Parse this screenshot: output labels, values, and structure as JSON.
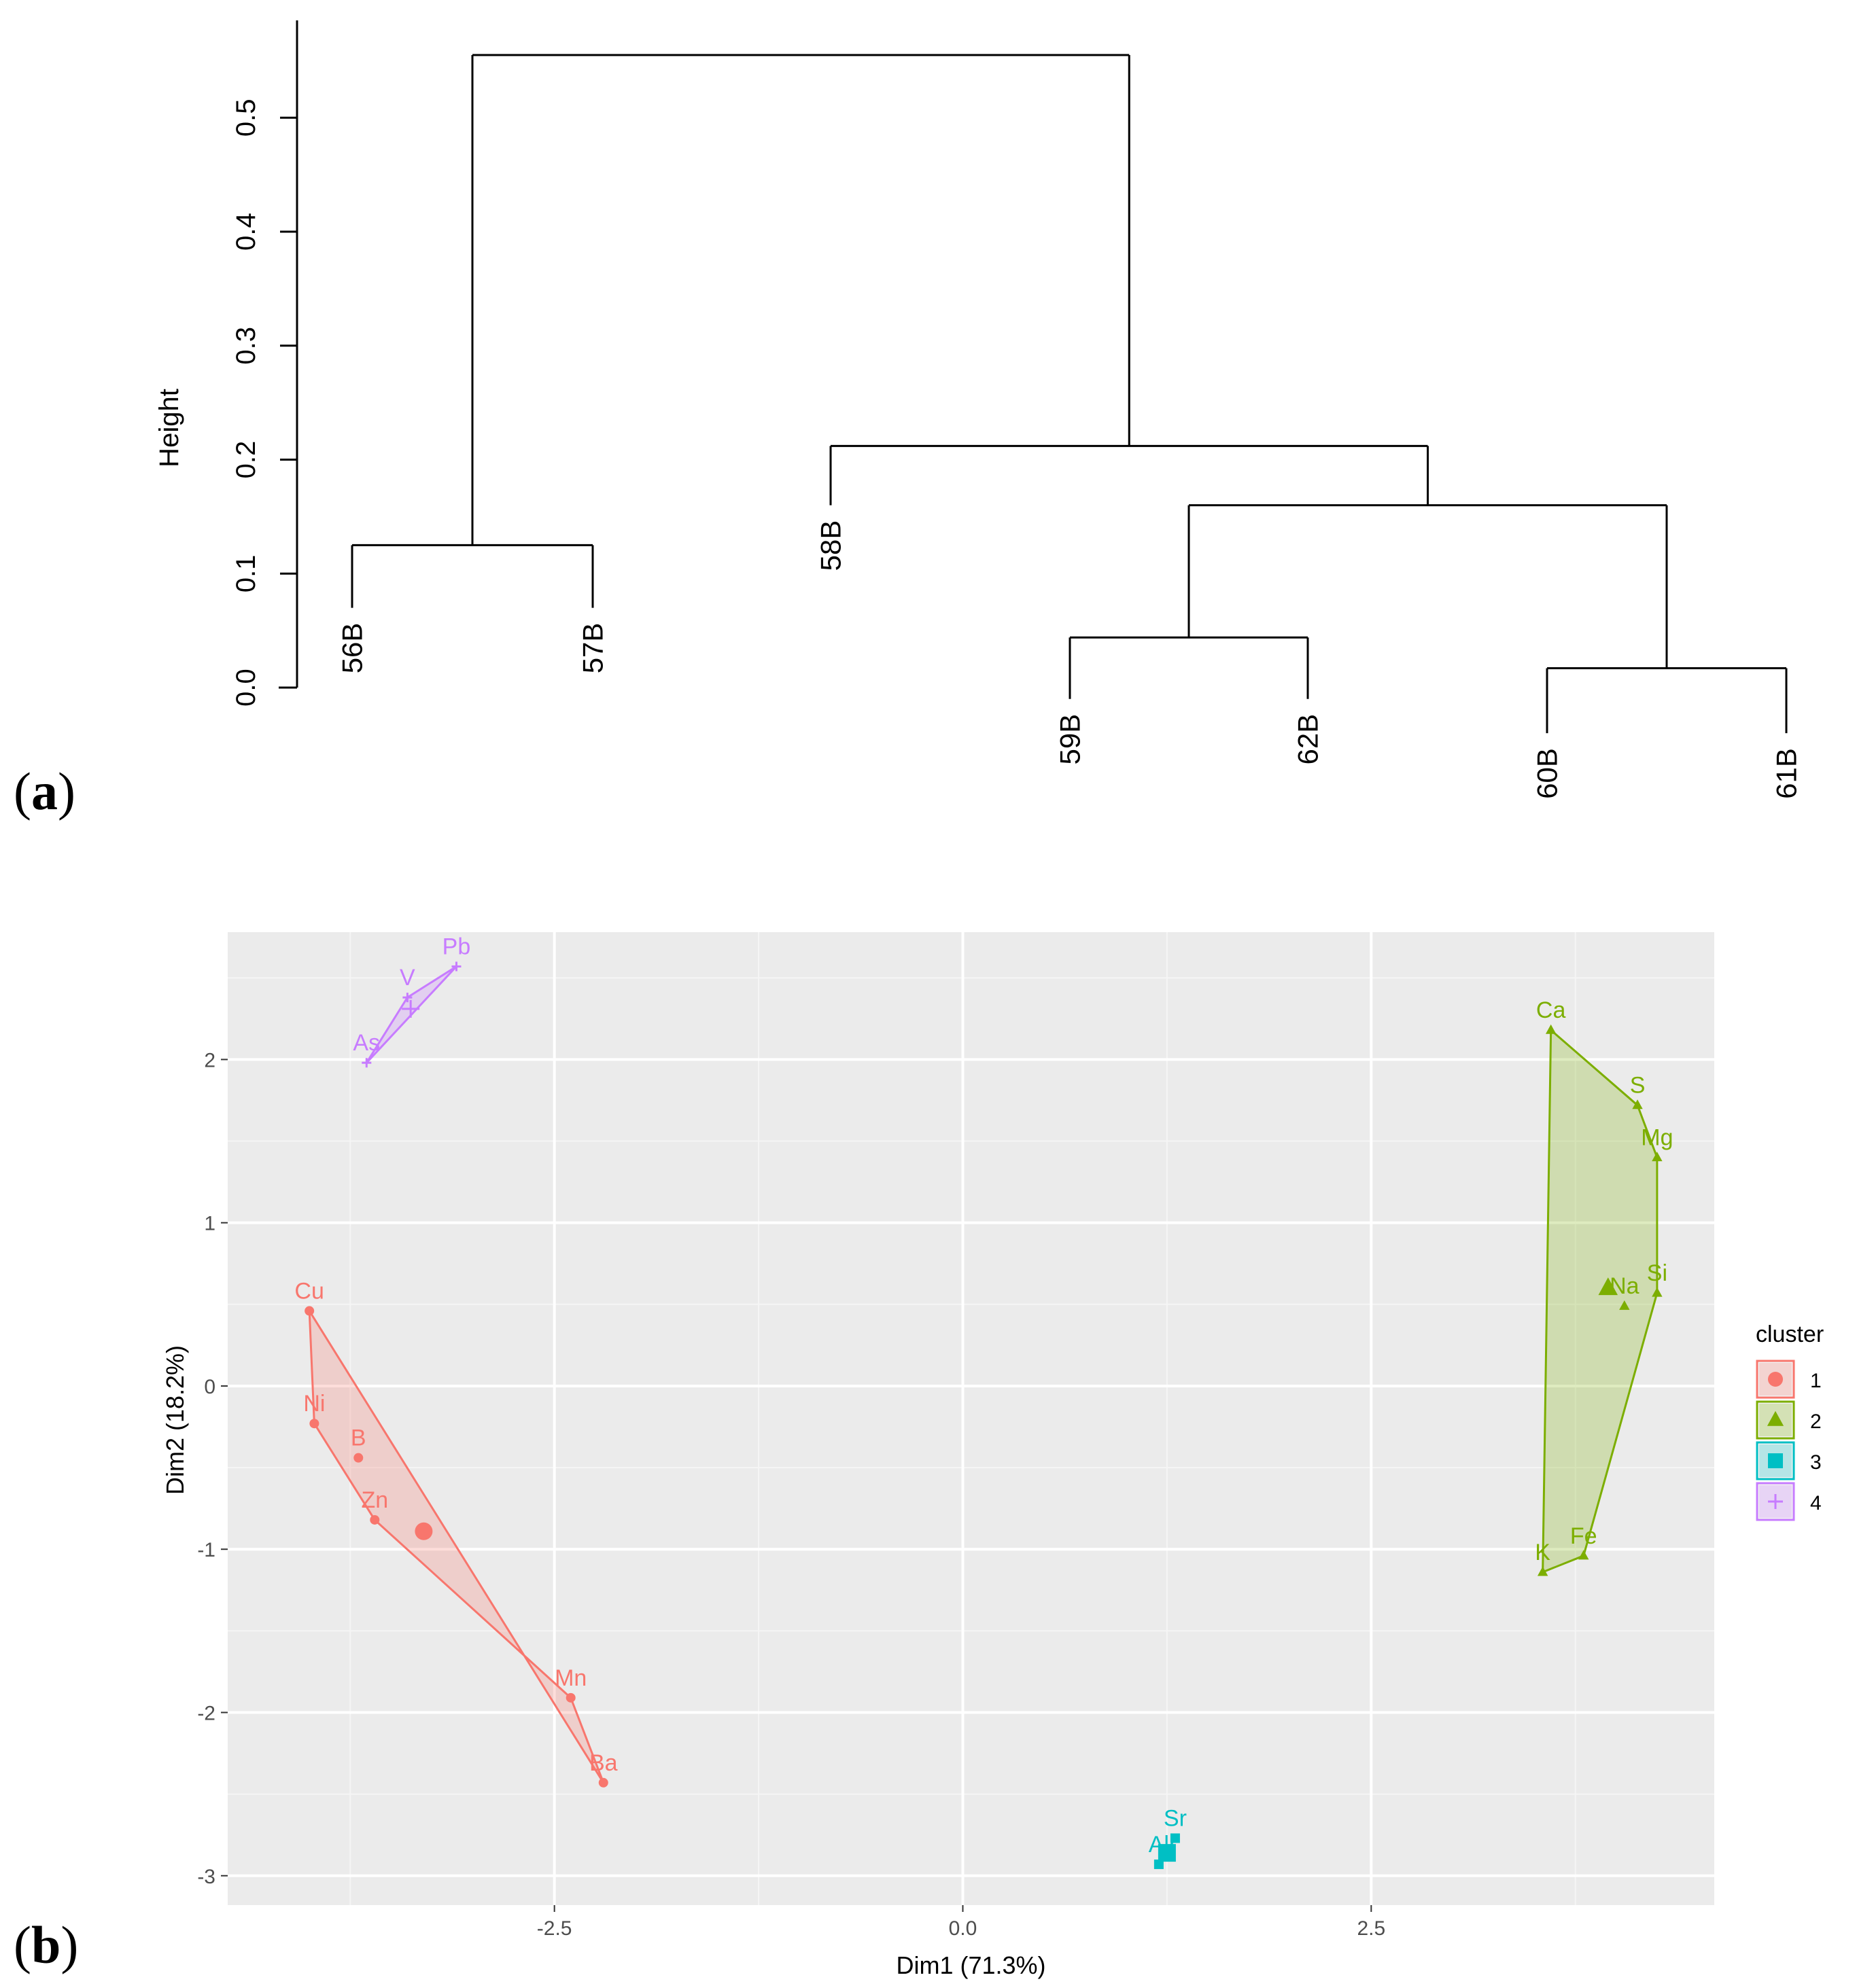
{
  "panel_labels": {
    "a": "a",
    "b": "b"
  },
  "chart_data": [
    {
      "type": "dendrogram",
      "panel": "(a)",
      "ylabel": "Height",
      "ylim": [
        0,
        0.57
      ],
      "yticks": [
        "0.0",
        "0.1",
        "0.2",
        "0.3",
        "0.4",
        "0.5"
      ],
      "ytick_values": [
        0,
        0.1,
        0.2,
        0.3,
        0.4,
        0.5
      ],
      "leaves": [
        "56B",
        "57B",
        "58B",
        "59B",
        "62B",
        "60B",
        "61B"
      ],
      "merges": [
        {
          "left": "56B",
          "right": "57B",
          "height": 0.125
        },
        {
          "left": "59B",
          "right": "62B",
          "height": 0.044
        },
        {
          "left": "60B",
          "right": "61B",
          "height": 0.017
        },
        {
          "left": "59B+62B",
          "right": "60B+61B",
          "height": 0.16
        },
        {
          "left": "58B",
          "right": "59B+62B+60B+61B",
          "height": 0.212
        },
        {
          "left": "56B+57B",
          "right": "58B+59B+62B+60B+61B",
          "height": 0.555
        }
      ],
      "leaf_bottoms": [
        0.07,
        0.07,
        0.16,
        -0.01,
        -0.01,
        -0.04,
        -0.04
      ]
    },
    {
      "type": "scatter",
      "panel": "(b)",
      "xlabel": "Dim1 (71.3%)",
      "ylabel": "Dim2 (18.2%)",
      "xlim": [
        -4.5,
        4.6
      ],
      "ylim": [
        -3.18,
        2.78
      ],
      "xticks": [
        "-2.5",
        "0.0",
        "2.5"
      ],
      "xtick_values": [
        -2.5,
        0,
        2.5
      ],
      "yticks": [
        "-3",
        "-2",
        "-1",
        "0",
        "1",
        "2"
      ],
      "ytick_values": [
        -3,
        -2,
        -1,
        0,
        1,
        2
      ],
      "legend": {
        "title": "cluster",
        "entries": [
          "1",
          "2",
          "3",
          "4"
        ],
        "position": "right"
      },
      "series": [
        {
          "name": "1",
          "color": "#F8766D",
          "marker": "circle",
          "points": [
            {
              "label": "Cu",
              "x": -4.0,
              "y": 0.46
            },
            {
              "label": "Ni",
              "x": -3.97,
              "y": -0.23
            },
            {
              "label": "B",
              "x": -3.7,
              "y": -0.44
            },
            {
              "label": "Zn",
              "x": -3.6,
              "y": -0.82
            },
            {
              "label": "Mn",
              "x": -2.4,
              "y": -1.91
            },
            {
              "label": "Ba",
              "x": -2.2,
              "y": -2.43
            }
          ],
          "hull": [
            "Cu",
            "Ba",
            "Mn",
            "Zn",
            "Ni"
          ],
          "centroid": {
            "x": -3.3,
            "y": -0.89
          }
        },
        {
          "name": "2",
          "color": "#7CAE00",
          "marker": "triangle",
          "points": [
            {
              "label": "Ca",
              "x": 3.6,
              "y": 2.18
            },
            {
              "label": "S",
              "x": 4.13,
              "y": 1.72
            },
            {
              "label": "Mg",
              "x": 4.25,
              "y": 1.4
            },
            {
              "label": "Si",
              "x": 4.25,
              "y": 0.57
            },
            {
              "label": "Na",
              "x": 4.05,
              "y": 0.49
            },
            {
              "label": "Fe",
              "x": 3.8,
              "y": -1.04
            },
            {
              "label": "K",
              "x": 3.55,
              "y": -1.14
            }
          ],
          "hull": [
            "Ca",
            "S",
            "Mg",
            "Si",
            "Fe",
            "K"
          ],
          "centroid": {
            "x": 3.95,
            "y": 0.6
          }
        },
        {
          "name": "3",
          "color": "#00BFC4",
          "marker": "square",
          "points": [
            {
              "label": "Sr",
              "x": 1.3,
              "y": -2.77
            },
            {
              "label": "Al",
              "x": 1.2,
              "y": -2.93
            }
          ],
          "hull": [
            "Sr",
            "Al"
          ],
          "centroid": {
            "x": 1.25,
            "y": -2.86
          }
        },
        {
          "name": "4",
          "color": "#C77CFF",
          "marker": "plus",
          "points": [
            {
              "label": "Pb",
              "x": -3.1,
              "y": 2.57
            },
            {
              "label": "V",
              "x": -3.4,
              "y": 2.38
            },
            {
              "label": "As",
              "x": -3.65,
              "y": 1.98
            }
          ],
          "hull": [
            "Pb",
            "V",
            "As"
          ],
          "centroid": {
            "x": -3.38,
            "y": 2.31
          }
        }
      ]
    }
  ]
}
